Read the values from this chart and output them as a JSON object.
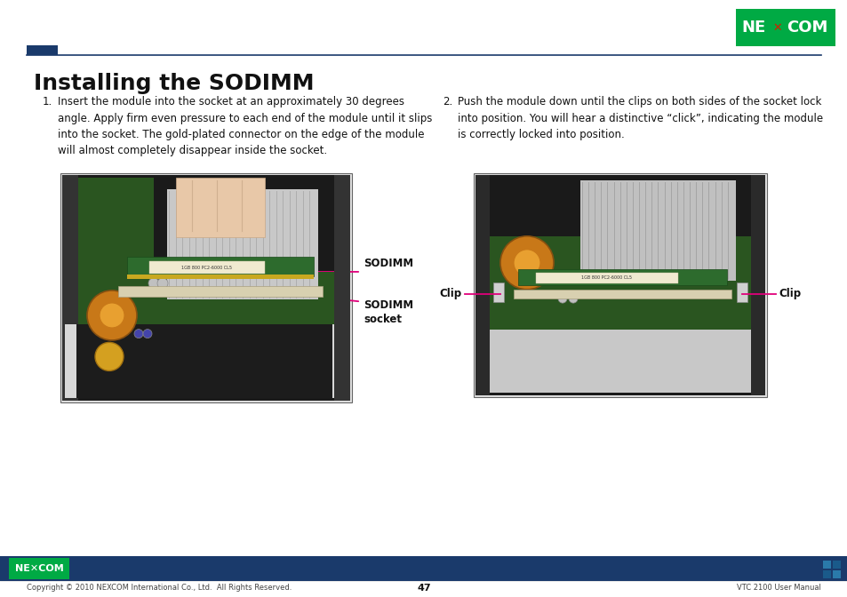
{
  "title": "Installing the SODIMM",
  "bg_color": "#ffffff",
  "header_line_color": "#1a3a6b",
  "header_square_color": "#1a3a6b",
  "footer_bar_color": "#1a3a6b",
  "footer_copyright": "Copyright © 2010 NEXCOM International Co., Ltd.  All Rights Reserved.",
  "footer_page": "47",
  "footer_right": "VTC 2100 User Manual",
  "title_fontsize": 18,
  "body_fontsize": 8.5,
  "label_fontsize": 8.5,
  "step1_number": "1.",
  "step1_text": "Insert the module into the socket at an approximately 30 degrees\nangle. Apply firm even pressure to each end of the module until it slips\ninto the socket. The gold-plated connector on the edge of the module\nwill almost completely disappear inside the socket.",
  "step2_number": "2.",
  "step2_text": "Push the module down until the clips on both sides of the socket lock\ninto position. You will hear a distinctive “click”, indicating the module\nis correctly locked into position.",
  "label1": "SODIMM",
  "label2": "SODIMM\nsocket",
  "label3_left": "Clip",
  "label3_right": "Clip",
  "annotation_color": "#e0007a",
  "nexcom_logo_bg": "#00aa44",
  "nexcom_logo_text": "#ffffff",
  "footer_logo_bg": "#00aa44"
}
